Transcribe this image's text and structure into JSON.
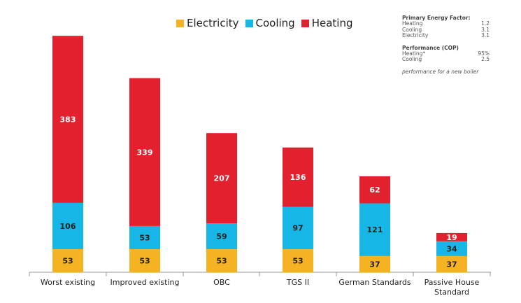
{
  "legend": [
    {
      "label": "Electricity",
      "color": "#f5b323"
    },
    {
      "label": "Cooling",
      "color": "#16b7e6"
    },
    {
      "label": "Heating",
      "color": "#e3202e"
    }
  ],
  "notes": {
    "pef_title": "Primary Energy Factor:",
    "pef_rows": [
      {
        "label": "Heating",
        "value": "1.2"
      },
      {
        "label": "Cooling",
        "value": "3.1"
      },
      {
        "label": "Electricity",
        "value": "3.1"
      }
    ],
    "cop_title": "Performance (COP)",
    "cop_rows": [
      {
        "label": "Heating*",
        "value": "95%"
      },
      {
        "label": "Cooling",
        "value": "2.5"
      }
    ],
    "footnote": "performance for a new boiler"
  },
  "chart_data": {
    "type": "bar",
    "stacked": true,
    "categories": [
      "Worst existing",
      "Improved existing",
      "OBC",
      "TGS II",
      "German Standards",
      "Passive House Standard"
    ],
    "category_lines": [
      [
        "Worst existing"
      ],
      [
        "Improved existing"
      ],
      [
        "OBC"
      ],
      [
        "TGS II"
      ],
      [
        "German Standards"
      ],
      [
        "Passive House",
        "Standard"
      ]
    ],
    "series": [
      {
        "name": "Electricity",
        "color": "#f5b323",
        "values": [
          53,
          53,
          53,
          53,
          37,
          37
        ]
      },
      {
        "name": "Cooling",
        "color": "#16b7e6",
        "values": [
          106,
          53,
          59,
          97,
          121,
          34
        ]
      },
      {
        "name": "Heating",
        "color": "#e3202e",
        "values": [
          383,
          339,
          207,
          136,
          62,
          19
        ]
      }
    ],
    "ylim": [
      0,
      560
    ],
    "legend_position": "top",
    "grid": false,
    "data_labels": true
  }
}
